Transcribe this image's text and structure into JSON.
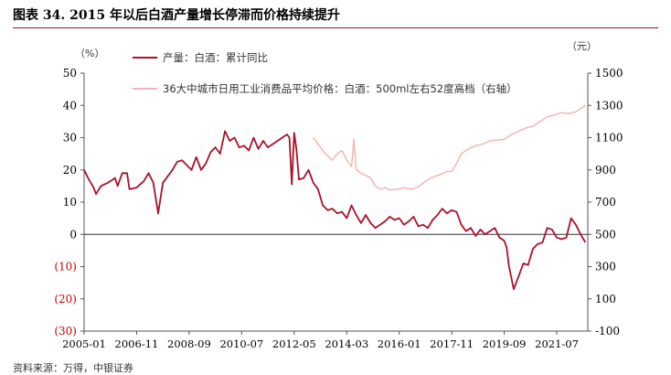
{
  "figure_title": "图表 34. 2015 年以后白酒产量增长停滞而价格持续提升",
  "source_note": "资料来源：万得，中银证券",
  "colors": {
    "production": "#a8122a",
    "price": "#f2b5b3",
    "axis": "#555555",
    "negative_tick": "#cc0000",
    "title_rule": "#8b1c2c"
  },
  "chart_data": {
    "type": "line",
    "left_axis": {
      "unit_label": "（%）",
      "ylim": [
        -30,
        50
      ],
      "ticks": [
        "50",
        "40",
        "30",
        "20",
        "10",
        "0",
        "(10)",
        "(20)",
        "(30)"
      ]
    },
    "right_axis": {
      "unit_label": "（元）",
      "ylim": [
        -100,
        1500
      ],
      "ticks": [
        "1500",
        "1300",
        "1100",
        "900",
        "700",
        "500",
        "300",
        "100",
        "-100"
      ]
    },
    "x_ticks": [
      "2005-01",
      "2006-11",
      "2008-09",
      "2010-07",
      "2012-05",
      "2014-03",
      "2016-01",
      "2017-11",
      "2019-09",
      "2021-07"
    ],
    "legend_placement": "top",
    "series": [
      {
        "name": "产量：白酒：累计同比",
        "axis": "left",
        "points": [
          [
            "2005-01",
            20
          ],
          [
            "2005-03",
            17
          ],
          [
            "2005-05",
            14.5
          ],
          [
            "2005-06",
            12.5
          ],
          [
            "2005-08",
            15
          ],
          [
            "2005-11",
            16
          ],
          [
            "2006-02",
            17.5
          ],
          [
            "2006-03",
            15
          ],
          [
            "2006-05",
            19
          ],
          [
            "2006-07",
            19
          ],
          [
            "2006-08",
            14
          ],
          [
            "2006-11",
            14.5
          ],
          [
            "2007-02",
            16.5
          ],
          [
            "2007-04",
            19
          ],
          [
            "2007-06",
            16
          ],
          [
            "2007-08",
            6.5
          ],
          [
            "2007-10",
            16
          ],
          [
            "2007-12",
            18
          ],
          [
            "2008-02",
            20
          ],
          [
            "2008-04",
            22.5
          ],
          [
            "2008-06",
            23
          ],
          [
            "2008-08",
            21.5
          ],
          [
            "2008-10",
            20
          ],
          [
            "2008-12",
            24
          ],
          [
            "2009-02",
            20
          ],
          [
            "2009-04",
            22
          ],
          [
            "2009-06",
            25.5
          ],
          [
            "2009-08",
            27
          ],
          [
            "2009-10",
            25
          ],
          [
            "2009-12",
            32
          ],
          [
            "2010-02",
            29
          ],
          [
            "2010-04",
            30
          ],
          [
            "2010-06",
            27
          ],
          [
            "2010-08",
            27.5
          ],
          [
            "2010-10",
            26
          ],
          [
            "2010-12",
            30
          ],
          [
            "2011-02",
            26.5
          ],
          [
            "2011-04",
            29
          ],
          [
            "2011-06",
            27
          ],
          [
            "2011-08",
            28
          ],
          [
            "2011-10",
            29
          ],
          [
            "2011-12",
            30
          ],
          [
            "2012-02",
            31
          ],
          [
            "2012-03",
            30
          ],
          [
            "2012-04",
            15.5
          ],
          [
            "2012-05",
            31.5
          ],
          [
            "2012-06",
            26
          ],
          [
            "2012-07",
            17
          ],
          [
            "2012-09",
            17.5
          ],
          [
            "2012-11",
            20
          ],
          [
            "2013-01",
            16
          ],
          [
            "2013-03",
            14
          ],
          [
            "2013-05",
            9
          ],
          [
            "2013-07",
            7.5
          ],
          [
            "2013-09",
            8
          ],
          [
            "2013-11",
            6.5
          ],
          [
            "2014-01",
            7
          ],
          [
            "2014-03",
            5
          ],
          [
            "2014-05",
            9
          ],
          [
            "2014-07",
            6
          ],
          [
            "2014-09",
            3.5
          ],
          [
            "2014-11",
            6
          ],
          [
            "2015-01",
            3.5
          ],
          [
            "2015-03",
            2
          ],
          [
            "2015-05",
            3
          ],
          [
            "2015-07",
            4
          ],
          [
            "2015-09",
            5.5
          ],
          [
            "2015-11",
            4.5
          ],
          [
            "2016-01",
            5
          ],
          [
            "2016-03",
            3
          ],
          [
            "2016-05",
            4
          ],
          [
            "2016-07",
            5.5
          ],
          [
            "2016-09",
            2.5
          ],
          [
            "2016-11",
            3
          ],
          [
            "2017-01",
            2
          ],
          [
            "2017-03",
            4.5
          ],
          [
            "2017-05",
            6
          ],
          [
            "2017-07",
            8
          ],
          [
            "2017-09",
            6.5
          ],
          [
            "2017-11",
            7.5
          ],
          [
            "2018-01",
            7
          ],
          [
            "2018-03",
            3
          ],
          [
            "2018-05",
            1
          ],
          [
            "2018-07",
            2
          ],
          [
            "2018-09",
            -0.5
          ],
          [
            "2018-11",
            1.5
          ],
          [
            "2019-01",
            0
          ],
          [
            "2019-03",
            1
          ],
          [
            "2019-05",
            2
          ],
          [
            "2019-07",
            -1
          ],
          [
            "2019-09",
            -2
          ],
          [
            "2019-10",
            -4
          ],
          [
            "2019-11",
            -10
          ],
          [
            "2020-01",
            -17
          ],
          [
            "2020-03",
            -13
          ],
          [
            "2020-05",
            -9
          ],
          [
            "2020-07",
            -9.5
          ],
          [
            "2020-09",
            -4.5
          ],
          [
            "2020-11",
            -3
          ],
          [
            "2021-01",
            -2.5
          ],
          [
            "2021-03",
            2
          ],
          [
            "2021-05",
            1.5
          ],
          [
            "2021-07",
            -1
          ],
          [
            "2021-09",
            -1.5
          ],
          [
            "2021-11",
            -1
          ],
          [
            "2022-01",
            5
          ],
          [
            "2022-03",
            3
          ],
          [
            "2022-05",
            0
          ],
          [
            "2022-07",
            -2.5
          ]
        ]
      },
      {
        "name": "36大中城市日用工业消费品平均价格：白酒：500ml左右52度高档（右轴）",
        "axis": "right",
        "points": [
          [
            "2013-01",
            1100
          ],
          [
            "2013-04",
            1040
          ],
          [
            "2013-06",
            1000
          ],
          [
            "2013-09",
            960
          ],
          [
            "2013-11",
            1000
          ],
          [
            "2014-01",
            1020
          ],
          [
            "2014-03",
            960
          ],
          [
            "2014-05",
            920
          ],
          [
            "2014-06",
            1090
          ],
          [
            "2014-07",
            900
          ],
          [
            "2014-09",
            880
          ],
          [
            "2015-01",
            850
          ],
          [
            "2015-03",
            800
          ],
          [
            "2015-05",
            780
          ],
          [
            "2015-07",
            790
          ],
          [
            "2015-09",
            775
          ],
          [
            "2016-01",
            780
          ],
          [
            "2016-03",
            790
          ],
          [
            "2016-06",
            780
          ],
          [
            "2016-09",
            795
          ],
          [
            "2016-12",
            830
          ],
          [
            "2017-03",
            855
          ],
          [
            "2017-06",
            870
          ],
          [
            "2017-09",
            890
          ],
          [
            "2017-11",
            890
          ],
          [
            "2018-01",
            940
          ],
          [
            "2018-03",
            1000
          ],
          [
            "2018-06",
            1030
          ],
          [
            "2018-09",
            1050
          ],
          [
            "2018-12",
            1060
          ],
          [
            "2019-03",
            1080
          ],
          [
            "2019-06",
            1085
          ],
          [
            "2019-09",
            1090
          ],
          [
            "2019-12",
            1120
          ],
          [
            "2020-03",
            1140
          ],
          [
            "2020-06",
            1160
          ],
          [
            "2020-09",
            1170
          ],
          [
            "2020-12",
            1200
          ],
          [
            "2021-03",
            1230
          ],
          [
            "2021-06",
            1240
          ],
          [
            "2021-09",
            1255
          ],
          [
            "2021-12",
            1250
          ],
          [
            "2022-03",
            1260
          ],
          [
            "2022-05",
            1280
          ],
          [
            "2022-07",
            1300
          ]
        ]
      }
    ]
  }
}
